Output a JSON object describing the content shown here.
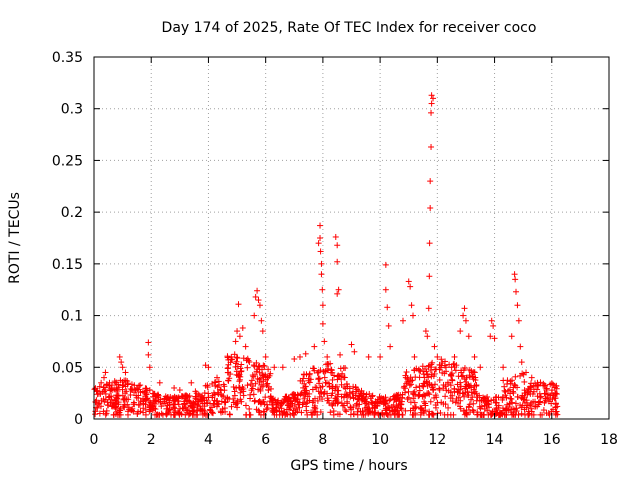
{
  "chart_data": {
    "type": "scatter",
    "title": "Day 174 of 2025, Rate Of TEC Index for receiver coco",
    "xlabel": "GPS time / hours",
    "ylabel": "ROTI / TECUs",
    "xlim": [
      0,
      18
    ],
    "ylim": [
      0,
      0.35
    ],
    "xticks": [
      0,
      2,
      4,
      6,
      8,
      10,
      12,
      14,
      16,
      18
    ],
    "yticks": [
      0,
      0.05,
      0.1,
      0.15,
      0.2,
      0.25,
      0.3,
      0.35
    ],
    "xtick_labels": [
      "0",
      "2",
      "4",
      "6",
      "8",
      "10",
      "12",
      "14",
      "16",
      "18"
    ],
    "ytick_labels": [
      "0",
      "0.05",
      "0.1",
      "0.15",
      "0.2",
      "0.25",
      "0.3",
      "0.35"
    ],
    "grid": true,
    "marker": "+",
    "color": "#ff0000",
    "x_data_range": [
      0,
      16.2
    ],
    "series": [
      {
        "name": "ROTI",
        "points": [
          [
            0.25,
            0.035
          ],
          [
            0.35,
            0.04
          ],
          [
            0.4,
            0.045
          ],
          [
            0.6,
            0.03
          ],
          [
            0.9,
            0.06
          ],
          [
            0.95,
            0.055
          ],
          [
            1.0,
            0.05
          ],
          [
            1.1,
            0.045
          ],
          [
            1.5,
            0.03
          ],
          [
            1.9,
            0.074
          ],
          [
            1.9,
            0.062
          ],
          [
            1.95,
            0.05
          ],
          [
            2.3,
            0.035
          ],
          [
            2.8,
            0.03
          ],
          [
            3.0,
            0.028
          ],
          [
            3.4,
            0.035
          ],
          [
            3.9,
            0.052
          ],
          [
            4.0,
            0.05
          ],
          [
            4.3,
            0.04
          ],
          [
            4.8,
            0.06
          ],
          [
            4.95,
            0.075
          ],
          [
            5.0,
            0.085
          ],
          [
            5.05,
            0.111
          ],
          [
            5.1,
            0.08
          ],
          [
            5.2,
            0.088
          ],
          [
            5.3,
            0.07
          ],
          [
            5.6,
            0.1
          ],
          [
            5.65,
            0.118
          ],
          [
            5.7,
            0.124
          ],
          [
            5.75,
            0.115
          ],
          [
            5.8,
            0.11
          ],
          [
            5.85,
            0.095
          ],
          [
            5.9,
            0.085
          ],
          [
            6.0,
            0.06
          ],
          [
            6.3,
            0.05
          ],
          [
            6.6,
            0.05
          ],
          [
            7.0,
            0.058
          ],
          [
            7.2,
            0.06
          ],
          [
            7.4,
            0.063
          ],
          [
            7.7,
            0.07
          ],
          [
            7.85,
            0.17
          ],
          [
            7.9,
            0.187
          ],
          [
            7.9,
            0.175
          ],
          [
            7.92,
            0.162
          ],
          [
            7.95,
            0.15
          ],
          [
            7.95,
            0.14
          ],
          [
            7.98,
            0.125
          ],
          [
            8.0,
            0.11
          ],
          [
            8.0,
            0.092
          ],
          [
            8.05,
            0.075
          ],
          [
            8.15,
            0.06
          ],
          [
            8.45,
            0.176
          ],
          [
            8.5,
            0.168
          ],
          [
            8.5,
            0.152
          ],
          [
            8.5,
            0.121
          ],
          [
            8.55,
            0.125
          ],
          [
            8.6,
            0.062
          ],
          [
            9.0,
            0.072
          ],
          [
            9.1,
            0.065
          ],
          [
            9.6,
            0.06
          ],
          [
            10.0,
            0.06
          ],
          [
            10.2,
            0.149
          ],
          [
            10.2,
            0.125
          ],
          [
            10.25,
            0.108
          ],
          [
            10.3,
            0.09
          ],
          [
            10.35,
            0.07
          ],
          [
            10.8,
            0.095
          ],
          [
            11.0,
            0.133
          ],
          [
            11.05,
            0.128
          ],
          [
            11.1,
            0.11
          ],
          [
            11.15,
            0.1
          ],
          [
            11.2,
            0.06
          ],
          [
            11.6,
            0.085
          ],
          [
            11.65,
            0.08
          ],
          [
            11.7,
            0.107
          ],
          [
            11.72,
            0.138
          ],
          [
            11.73,
            0.17
          ],
          [
            11.75,
            0.204
          ],
          [
            11.75,
            0.23
          ],
          [
            11.78,
            0.263
          ],
          [
            11.78,
            0.296
          ],
          [
            11.8,
            0.305
          ],
          [
            11.8,
            0.313
          ],
          [
            11.85,
            0.31
          ],
          [
            11.9,
            0.07
          ],
          [
            12.0,
            0.06
          ],
          [
            12.3,
            0.05
          ],
          [
            12.6,
            0.06
          ],
          [
            12.8,
            0.085
          ],
          [
            12.9,
            0.1
          ],
          [
            12.95,
            0.107
          ],
          [
            13.0,
            0.095
          ],
          [
            13.1,
            0.08
          ],
          [
            13.3,
            0.06
          ],
          [
            13.5,
            0.05
          ],
          [
            13.85,
            0.08
          ],
          [
            13.9,
            0.095
          ],
          [
            13.95,
            0.09
          ],
          [
            14.0,
            0.078
          ],
          [
            14.3,
            0.05
          ],
          [
            14.6,
            0.08
          ],
          [
            14.7,
            0.14
          ],
          [
            14.72,
            0.135
          ],
          [
            14.75,
            0.123
          ],
          [
            14.8,
            0.11
          ],
          [
            14.85,
            0.095
          ],
          [
            14.9,
            0.07
          ],
          [
            14.95,
            0.055
          ],
          [
            15.1,
            0.045
          ],
          [
            15.3,
            0.04
          ],
          [
            15.5,
            0.035
          ],
          [
            15.8,
            0.02
          ],
          [
            16.0,
            0.025
          ],
          [
            16.1,
            0.02
          ]
        ]
      }
    ]
  }
}
